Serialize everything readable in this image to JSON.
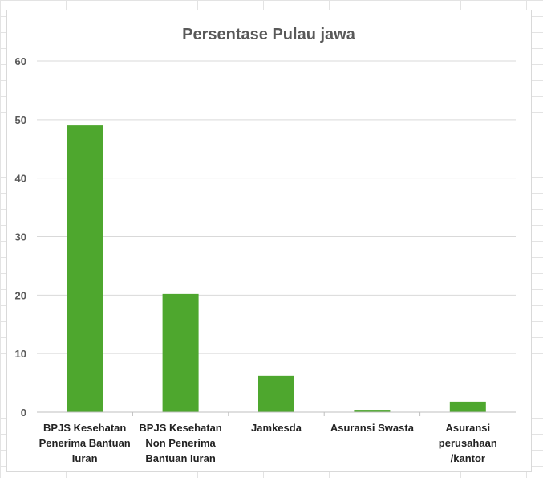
{
  "chart_data": {
    "type": "bar",
    "title": "Persentase Pulau jawa",
    "xlabel": "",
    "ylabel": "",
    "ylim": [
      0,
      60
    ],
    "yticks": [
      0,
      10,
      20,
      30,
      40,
      50,
      60
    ],
    "grid": true,
    "legend": "none",
    "bar_color": "#4ea72e",
    "categories": [
      [
        "BPJS Kesehatan",
        "Penerima Bantuan",
        "Iuran"
      ],
      [
        "BPJS Kesehatan",
        "Non Penerima",
        "Bantuan Iuran"
      ],
      [
        "Jamkesda"
      ],
      [
        "Asuransi Swasta"
      ],
      [
        "Asuransi",
        "perusahaan",
        "/kantor"
      ]
    ],
    "values": [
      49,
      20.2,
      6.2,
      0.4,
      1.8
    ]
  }
}
